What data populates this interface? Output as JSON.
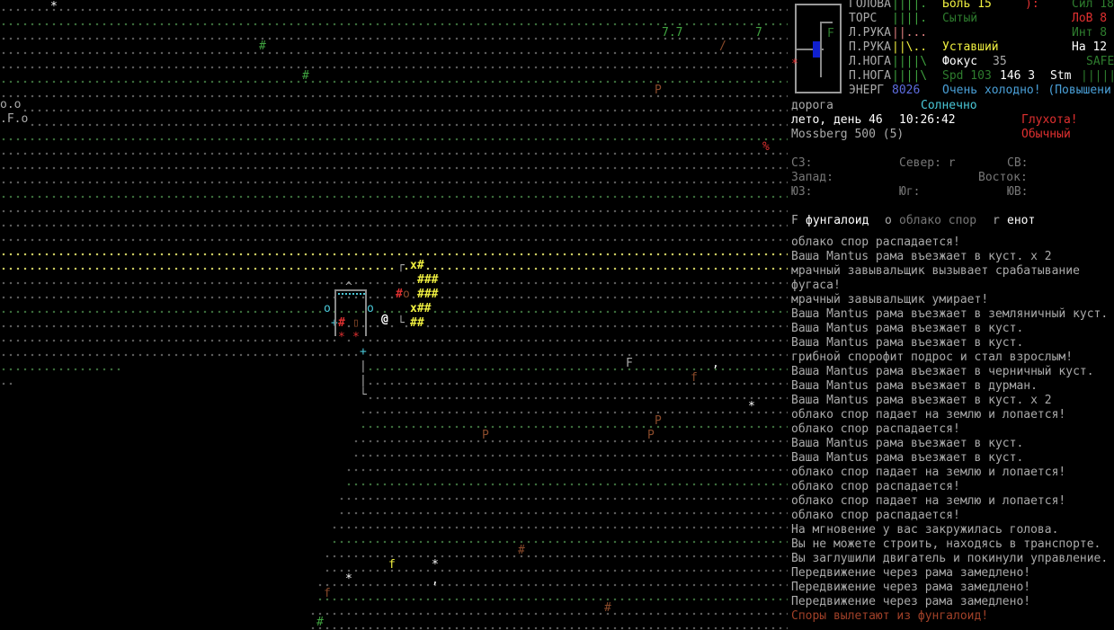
{
  "status": {
    "body_parts": [
      {
        "label": "ГОЛОВА",
        "hp": "||||."
      },
      {
        "label": "ТОРС",
        "hp": "||||."
      },
      {
        "label": "Л.РУКА",
        "hp": "||..."
      },
      {
        "label": "П.РУКА",
        "hp": "||\\.."
      },
      {
        "label": "Л.НОГА",
        "hp": "||||\\"
      },
      {
        "label": "П.НОГА",
        "hp": "||||\\"
      }
    ],
    "power_label": "ЭНЕРГ",
    "power": "8026",
    "pain": "Боль 15",
    "mood": "):",
    "hunger": "Сытый",
    "fatigue": "Уставший",
    "focus_label": "Фокус",
    "focus": "35",
    "speed": "Spd 103",
    "move": "146 3",
    "stamina_label": "Stm",
    "stamina_bar": "|||||",
    "temperature": "Очень холодно! (Повышени",
    "str": "Сил 18",
    "dex": "ЛоВ 8",
    "int": "Инт 8",
    "per": "На 12",
    "safe": "SAFE",
    "minimap_marker": "F"
  },
  "location": {
    "terrain": "дорога",
    "weather": "Солнечно",
    "date": "лето, день 46",
    "time": "10:26:42",
    "sound": "Глухота!",
    "weapon": "Mossberg 500 (5)",
    "noise": "Обычный"
  },
  "compass": {
    "nw": "СЗ:",
    "n": "Север: r",
    "ne": "СВ:",
    "w": "Запад:",
    "e": "Восток:",
    "sw": "ЮЗ:",
    "s": "Юг:",
    "se": "ЮВ:"
  },
  "monsters": [
    {
      "glyph": "F",
      "name": "фунгалоид"
    },
    {
      "glyph": "o",
      "name": "облако спор"
    },
    {
      "glyph": "r",
      "name": "енот"
    }
  ],
  "messages": [
    "облако спор распадается!",
    "Ваша Mantus рама въезжает в куст. x 2",
    "мрачный завывальщик вызывает срабатывание",
    "фугаса!",
    "мрачный завывальщик умирает!",
    "Ваша Mantus рама въезжает в земляничный куст.",
    "Ваша Mantus рама въезжает в куст.",
    "Ваша Mantus рама въезжает в куст.",
    "грибной спорофит подрос и стал взрослым!",
    "Ваша Mantus рама въезжает в черничный куст.",
    "Ваша Mantus рама въезжает в дурман.",
    "Ваша Mantus рама въезжает в куст. x 2",
    "облако спор падает на землю и лопается!",
    "облако спор распадается!",
    "Ваша Mantus рама въезжает в куст.",
    "Ваша Mantus рама въезжает в куст.",
    "облако спор падает на землю и лопается!",
    "облако спор распадается!",
    "облако спор падает на землю и лопается!",
    "облако спор распадается!",
    "На мгновение у вас закружилась голова.",
    "Вы не можете строить, находясь в транспорте.",
    "Вы заглушили двигатель и покинули управление.",
    "Передвижение через рама замедлено!",
    "Передвижение через рама замедлено!",
    "Передвижение через рама замедлено!",
    "Споры вылетают из фунгалоид!"
  ],
  "map": {
    "player": "@",
    "entities": [
      "*",
      "#",
      "#",
      "7.7",
      "7",
      "/",
      "P",
      "o.o",
      ".F.o",
      "%",
      "F",
      ",",
      "f",
      "*",
      "P",
      "P",
      "P",
      "#",
      "f",
      "*",
      "*",
      ",",
      "f",
      "#",
      "#"
    ],
    "vehicle": [
      "┌",
      "x#",
      "###",
      "^",
      "#",
      "o",
      "###",
      "o",
      "o",
      "x##",
      "+",
      "#",
      "▯",
      "└",
      "##",
      "*",
      "*",
      "+",
      "|",
      "|",
      "└"
    ]
  }
}
